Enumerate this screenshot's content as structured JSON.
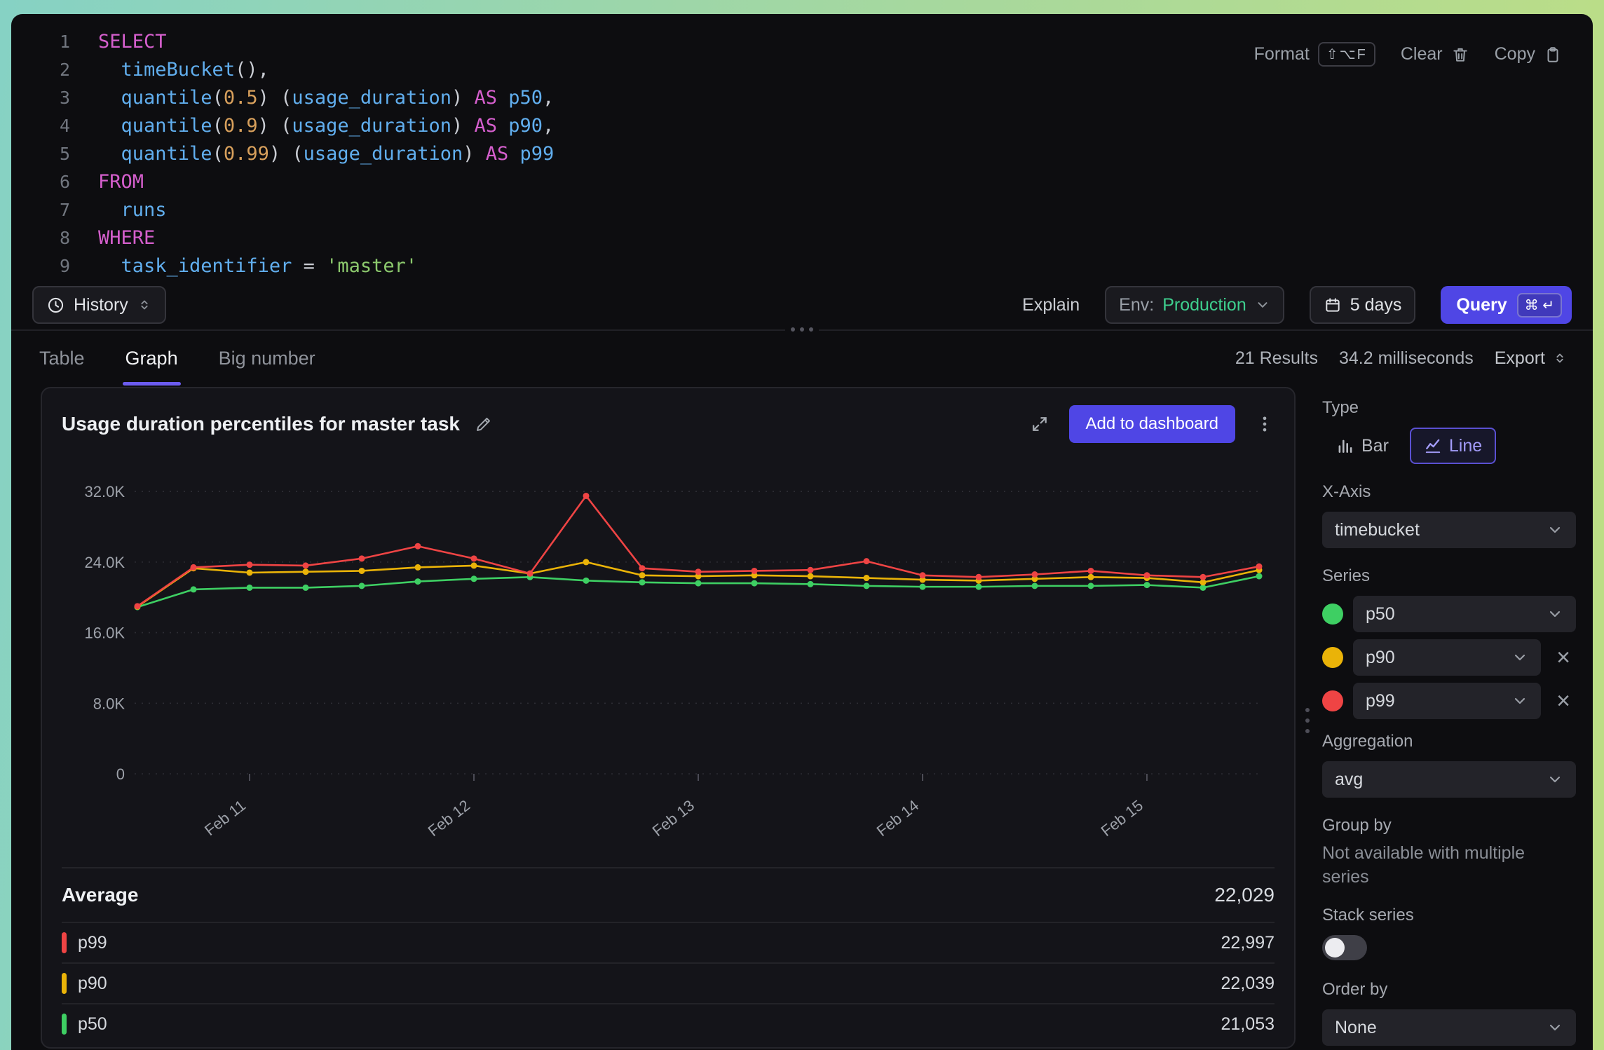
{
  "editor": {
    "lines": [
      {
        "no": "1",
        "tokens": [
          {
            "c": "kw",
            "v": "SELECT"
          }
        ]
      },
      {
        "no": "2",
        "tokens": [
          {
            "c": "pl",
            "v": "  "
          },
          {
            "c": "fn",
            "v": "timeBucket"
          },
          {
            "c": "pu",
            "v": "(),"
          }
        ]
      },
      {
        "no": "3",
        "tokens": [
          {
            "c": "pl",
            "v": "  "
          },
          {
            "c": "fn",
            "v": "quantile"
          },
          {
            "c": "pu",
            "v": "("
          },
          {
            "c": "nu",
            "v": "0.5"
          },
          {
            "c": "pu",
            "v": ") ("
          },
          {
            "c": "id",
            "v": "usage_duration"
          },
          {
            "c": "pu",
            "v": ") "
          },
          {
            "c": "kw",
            "v": "AS"
          },
          {
            "c": "pl",
            "v": " "
          },
          {
            "c": "id",
            "v": "p50"
          },
          {
            "c": "pu",
            "v": ","
          }
        ]
      },
      {
        "no": "4",
        "tokens": [
          {
            "c": "pl",
            "v": "  "
          },
          {
            "c": "fn",
            "v": "quantile"
          },
          {
            "c": "pu",
            "v": "("
          },
          {
            "c": "nu",
            "v": "0.9"
          },
          {
            "c": "pu",
            "v": ") ("
          },
          {
            "c": "id",
            "v": "usage_duration"
          },
          {
            "c": "pu",
            "v": ") "
          },
          {
            "c": "kw",
            "v": "AS"
          },
          {
            "c": "pl",
            "v": " "
          },
          {
            "c": "id",
            "v": "p90"
          },
          {
            "c": "pu",
            "v": ","
          }
        ]
      },
      {
        "no": "5",
        "tokens": [
          {
            "c": "pl",
            "v": "  "
          },
          {
            "c": "fn",
            "v": "quantile"
          },
          {
            "c": "pu",
            "v": "("
          },
          {
            "c": "nu",
            "v": "0.99"
          },
          {
            "c": "pu",
            "v": ") ("
          },
          {
            "c": "id",
            "v": "usage_duration"
          },
          {
            "c": "pu",
            "v": ") "
          },
          {
            "c": "kw",
            "v": "AS"
          },
          {
            "c": "pl",
            "v": " "
          },
          {
            "c": "id",
            "v": "p99"
          }
        ]
      },
      {
        "no": "6",
        "tokens": [
          {
            "c": "kw",
            "v": "FROM"
          }
        ]
      },
      {
        "no": "7",
        "tokens": [
          {
            "c": "pl",
            "v": "  "
          },
          {
            "c": "id",
            "v": "runs"
          }
        ]
      },
      {
        "no": "8",
        "tokens": [
          {
            "c": "kw",
            "v": "WHERE"
          }
        ]
      },
      {
        "no": "9",
        "tokens": [
          {
            "c": "pl",
            "v": "  "
          },
          {
            "c": "id",
            "v": "task_identifier"
          },
          {
            "c": "pu",
            "v": " = "
          },
          {
            "c": "st",
            "v": "'master'"
          }
        ]
      }
    ],
    "actions": {
      "format": "Format",
      "format_keys": "⇧⌥F",
      "clear": "Clear",
      "copy": "Copy"
    }
  },
  "toolbar": {
    "history": "History",
    "explain": "Explain",
    "env_label": "Env:",
    "env_value": "Production",
    "range": "5 days",
    "query": "Query",
    "query_keys": "⌘ ↵"
  },
  "results_bar": {
    "tabs": [
      {
        "label": "Table",
        "active": false
      },
      {
        "label": "Graph",
        "active": true
      },
      {
        "label": "Big number",
        "active": false
      }
    ],
    "results_count": "21 Results",
    "duration": "34.2 milliseconds",
    "export": "Export"
  },
  "panel": {
    "title": "Usage duration percentiles for master task",
    "add_to_dashboard": "Add to dashboard",
    "average_label": "Average",
    "average_value": "22,029",
    "legend": [
      {
        "name": "p99",
        "value": "22,997",
        "color": "#ef4444"
      },
      {
        "name": "p90",
        "value": "22,039",
        "color": "#eab308"
      },
      {
        "name": "p50",
        "value": "21,053",
        "color": "#3ecf63"
      }
    ]
  },
  "chart_data": {
    "type": "line",
    "title": "Usage duration percentiles for master task",
    "xlabel": "timebucket",
    "ylabel": "usage_duration",
    "n_points": 21,
    "x_tick_labels": [
      "Feb 11",
      "Feb 12",
      "Feb 13",
      "Feb 14",
      "Feb 15"
    ],
    "x_tick_indices": [
      2,
      6,
      10,
      14,
      18
    ],
    "ylim": [
      0,
      34000
    ],
    "grid": "horizontal-dashed",
    "y_ticks": [
      {
        "v": 0,
        "label": "0"
      },
      {
        "v": 8000,
        "label": "8.0K"
      },
      {
        "v": 16000,
        "label": "16.0K"
      },
      {
        "v": 24000,
        "label": "24.0K"
      },
      {
        "v": 32000,
        "label": "32.0K"
      }
    ],
    "series": [
      {
        "name": "p50",
        "color": "#3ecf63",
        "values": [
          18900,
          20900,
          21100,
          21100,
          21300,
          21800,
          22100,
          22300,
          21900,
          21700,
          21600,
          21600,
          21500,
          21300,
          21200,
          21200,
          21300,
          21300,
          21400,
          21100,
          22400
        ]
      },
      {
        "name": "p90",
        "color": "#eab308",
        "values": [
          18950,
          23300,
          22800,
          22900,
          23000,
          23400,
          23600,
          22700,
          24000,
          22500,
          22400,
          22500,
          22400,
          22200,
          22000,
          21900,
          22100,
          22300,
          22200,
          21700,
          23100
        ]
      },
      {
        "name": "p99",
        "color": "#ef4444",
        "values": [
          19000,
          23400,
          23700,
          23600,
          24400,
          25800,
          24400,
          22700,
          31500,
          23300,
          22900,
          23000,
          23100,
          24100,
          22500,
          22300,
          22600,
          23000,
          22500,
          22300,
          23500
        ]
      }
    ]
  },
  "settings": {
    "type_label": "Type",
    "bar": "Bar",
    "line": "Line",
    "xaxis_label": "X-Axis",
    "xaxis_value": "timebucket",
    "series_label": "Series",
    "series": [
      {
        "name": "p50",
        "color": "#3ecf63",
        "removable": false
      },
      {
        "name": "p90",
        "color": "#eab308",
        "removable": true
      },
      {
        "name": "p99",
        "color": "#ef4444",
        "removable": true
      }
    ],
    "aggregation_label": "Aggregation",
    "aggregation_value": "avg",
    "group_by_label": "Group by",
    "group_by_note": "Not available with multiple series",
    "stack_label": "Stack series",
    "stack_on": false,
    "order_label": "Order by",
    "order_value": "None"
  }
}
